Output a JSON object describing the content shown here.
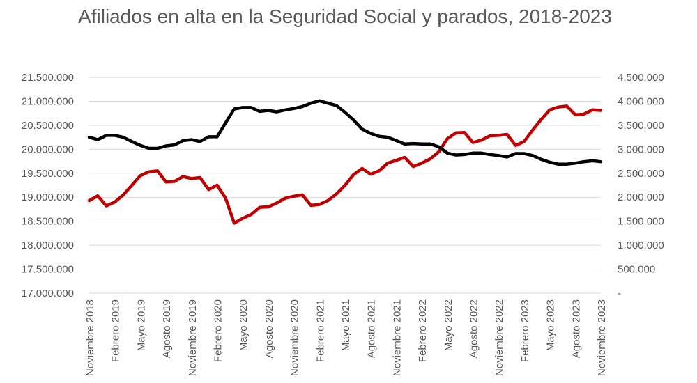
{
  "chart_data": {
    "type": "line",
    "title": "Afiliados en alta en la Seguridad Social y parados, 2018-2023",
    "left_ticks": [
      "17.000.000",
      "17.500.000",
      "18.000.000",
      "18.500.000",
      "19.000.000",
      "19.500.000",
      "20.000.000",
      "20.500.000",
      "21.000.000",
      "21.500.000"
    ],
    "right_ticks": [
      "-",
      "500.000",
      "1.000.000",
      "1.500.000",
      "2.000.000",
      "2.500.000",
      "3.000.000",
      "3.500.000",
      "4.000.000",
      "4.500.000"
    ],
    "ylim_left": [
      17000000,
      21500000
    ],
    "ylim_right": [
      0,
      4500000
    ],
    "x_tick_labels": [
      "Noviembre 2018",
      "Febrero 2019",
      "Mayo 2019",
      "Agosto 2019",
      "Noviembre 2019",
      "Febrero 2020",
      "Mayo 2020",
      "Agosto 2020",
      "Noviembre 2020",
      "Febrero 2021",
      "Mayo 2021",
      "Agosto 2021",
      "Noviembre 2021",
      "Febrero 2022",
      "Mayo 2022",
      "Agosto 2022",
      "Noviembre 2022",
      "Febrero 2023",
      "Mayo 2023",
      "Agosto 2023",
      "Noviembre 2023"
    ],
    "x": [
      "Nov 2018",
      "Dic 2018",
      "Ene 2019",
      "Feb 2019",
      "Mar 2019",
      "Abr 2019",
      "May 2019",
      "Jun 2019",
      "Jul 2019",
      "Ago 2019",
      "Sep 2019",
      "Oct 2019",
      "Nov 2019",
      "Dic 2019",
      "Ene 2020",
      "Feb 2020",
      "Mar 2020",
      "Abr 2020",
      "May 2020",
      "Jun 2020",
      "Jul 2020",
      "Ago 2020",
      "Sep 2020",
      "Oct 2020",
      "Nov 2020",
      "Dic 2020",
      "Ene 2021",
      "Feb 2021",
      "Mar 2021",
      "Abr 2021",
      "May 2021",
      "Jun 2021",
      "Jul 2021",
      "Ago 2021",
      "Sep 2021",
      "Oct 2021",
      "Nov 2021",
      "Dic 2021",
      "Ene 2022",
      "Feb 2022",
      "Mar 2022",
      "Abr 2022",
      "May 2022",
      "Jun 2022",
      "Jul 2022",
      "Ago 2022",
      "Sep 2022",
      "Oct 2022",
      "Nov 2022",
      "Dic 2022",
      "Ene 2023",
      "Feb 2023",
      "Mar 2023",
      "Abr 2023",
      "May 2023",
      "Jun 2023",
      "Jul 2023",
      "Ago 2023",
      "Sep 2023",
      "Oct 2023",
      "Nov 2023"
    ],
    "series": [
      {
        "axis": "left",
        "color": "#c00000",
        "values": [
          18930000,
          19030000,
          18820000,
          18900000,
          19050000,
          19250000,
          19450000,
          19530000,
          19550000,
          19320000,
          19330000,
          19430000,
          19390000,
          19410000,
          19160000,
          19250000,
          18980000,
          18460000,
          18560000,
          18640000,
          18790000,
          18800000,
          18880000,
          18980000,
          19020000,
          19050000,
          18830000,
          18850000,
          18930000,
          19070000,
          19250000,
          19470000,
          19600000,
          19480000,
          19550000,
          19710000,
          19770000,
          19830000,
          19640000,
          19710000,
          19800000,
          19950000,
          20220000,
          20340000,
          20350000,
          20140000,
          20190000,
          20280000,
          20290000,
          20310000,
          20080000,
          20160000,
          20400000,
          20620000,
          20820000,
          20880000,
          20900000,
          20720000,
          20730000,
          20820000,
          20810000
        ]
      },
      {
        "axis": "right",
        "color": "#000000",
        "values": [
          3250000,
          3200000,
          3290000,
          3290000,
          3250000,
          3160000,
          3080000,
          3020000,
          3020000,
          3070000,
          3090000,
          3180000,
          3200000,
          3160000,
          3260000,
          3260000,
          3550000,
          3840000,
          3870000,
          3870000,
          3790000,
          3810000,
          3780000,
          3820000,
          3850000,
          3890000,
          3960000,
          4010000,
          3960000,
          3910000,
          3770000,
          3610000,
          3420000,
          3330000,
          3270000,
          3250000,
          3180000,
          3110000,
          3120000,
          3110000,
          3110000,
          3050000,
          2920000,
          2880000,
          2890000,
          2920000,
          2920000,
          2890000,
          2870000,
          2840000,
          2910000,
          2910000,
          2870000,
          2790000,
          2730000,
          2690000,
          2690000,
          2710000,
          2740000,
          2760000,
          2740000
        ]
      }
    ]
  }
}
